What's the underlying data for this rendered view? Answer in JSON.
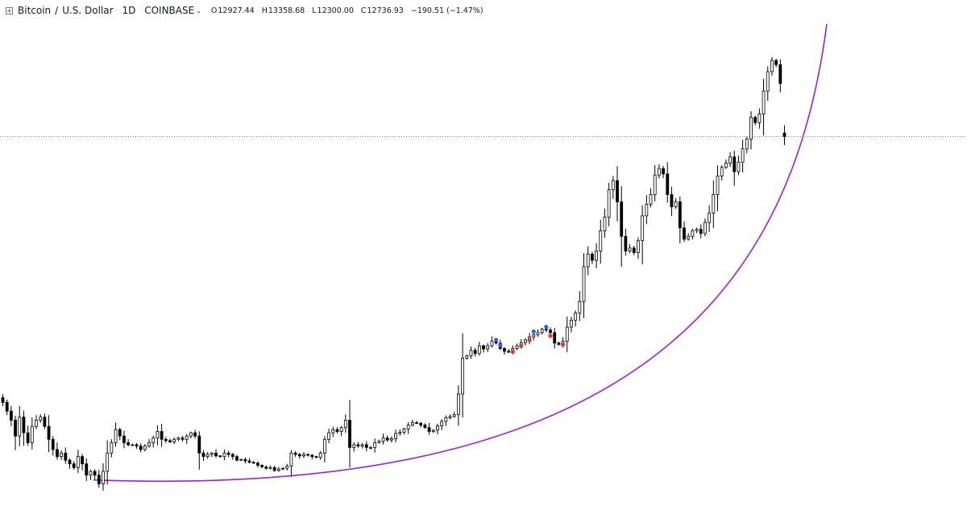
{
  "header": {
    "symbol_name": "Bitcoin",
    "quote_name": "U.S. Dollar",
    "interval": "1D",
    "exchange": "COINBASE",
    "open_key": "O",
    "open": "12927.44",
    "high_key": "H",
    "high": "13358.68",
    "low_key": "L",
    "low": "12300.00",
    "close_key": "C",
    "close": "12736.93",
    "change": "−190.51 (−1.47%)"
  },
  "colors": {
    "up_candle": "#ffffff",
    "down_candle": "#000000",
    "wick": "#000000",
    "curve": "#9c1fe0",
    "price_line": "#787b86",
    "buy_marker": "#2962ff",
    "sell_marker": "#e53935"
  },
  "chart_data": {
    "type": "candlestick",
    "symbol": "Bitcoin / U.S. Dollar",
    "interval": "1D",
    "exchange": "COINBASE",
    "y_scale": "log",
    "ylim": [
      2800,
      20500
    ],
    "grid": false,
    "last_bar": {
      "open": 12927.44,
      "high": 13358.68,
      "low": 12300.0,
      "close": 12736.93
    },
    "current_price_line": 12736.93,
    "closes": [
      4200,
      4050,
      3900,
      3650,
      3950,
      3700,
      3550,
      3800,
      3900,
      3950,
      3800,
      3600,
      3450,
      3350,
      3400,
      3300,
      3250,
      3200,
      3350,
      3250,
      3100,
      3150,
      3100,
      2990,
      3150,
      3400,
      3550,
      3750,
      3650,
      3550,
      3520,
      3520,
      3500,
      3450,
      3500,
      3550,
      3620,
      3720,
      3600,
      3580,
      3560,
      3600,
      3620,
      3600,
      3650,
      3700,
      3650,
      3400,
      3350,
      3380,
      3400,
      3360,
      3350,
      3400,
      3380,
      3350,
      3300,
      3310,
      3290,
      3270,
      3260,
      3230,
      3210,
      3190,
      3200,
      3160,
      3180,
      3190,
      3220,
      3400,
      3380,
      3360,
      3380,
      3370,
      3350,
      3340,
      3400,
      3600,
      3700,
      3750,
      3720,
      3780,
      3900,
      3480,
      3520,
      3500,
      3520,
      3480,
      3480,
      3550,
      3570,
      3620,
      3590,
      3610,
      3690,
      3710,
      3760,
      3820,
      3860,
      3850,
      3820,
      3780,
      3720,
      3740,
      3810,
      3880,
      3940,
      3960,
      3990,
      4350,
      5050,
      5100,
      5220,
      5150,
      5320,
      5250,
      5320,
      5420,
      5380,
      5260,
      5200,
      5180,
      5260,
      5320,
      5390,
      5450,
      5520,
      5570,
      5620,
      5700,
      5680,
      5620,
      5380,
      5350,
      5420,
      5750,
      5920,
      6100,
      6400,
      7400,
      7800,
      7600,
      7900,
      8600,
      9100,
      10200,
      10600,
      9700,
      8400,
      7900,
      8000,
      7850,
      8250,
      9150,
      9600,
      10000,
      10850,
      11150,
      10900,
      10000,
      9500,
      9700,
      8700,
      8300,
      8400,
      8600,
      8650,
      8500,
      8900,
      9250,
      10000,
      10800,
      11200,
      11400,
      11700,
      11000,
      11450,
      12100,
      12600,
      13800,
      13500,
      14000,
      15400,
      16700,
      17500,
      17200,
      15900,
      12730
    ],
    "trendline": {
      "type": "parabolic-curve",
      "from_bar": 22,
      "to_bar": "right-edge"
    },
    "markers": [
      {
        "bar": 118,
        "kind": "buy"
      },
      {
        "bar": 119,
        "kind": "buy"
      },
      {
        "bar": 122,
        "kind": "sell"
      },
      {
        "bar": 124,
        "kind": "sell"
      },
      {
        "bar": 126,
        "kind": "sell"
      },
      {
        "bar": 127,
        "kind": "buy"
      },
      {
        "bar": 130,
        "kind": "buy"
      },
      {
        "bar": 131,
        "kind": "sell"
      },
      {
        "bar": 134,
        "kind": "sell"
      }
    ]
  }
}
